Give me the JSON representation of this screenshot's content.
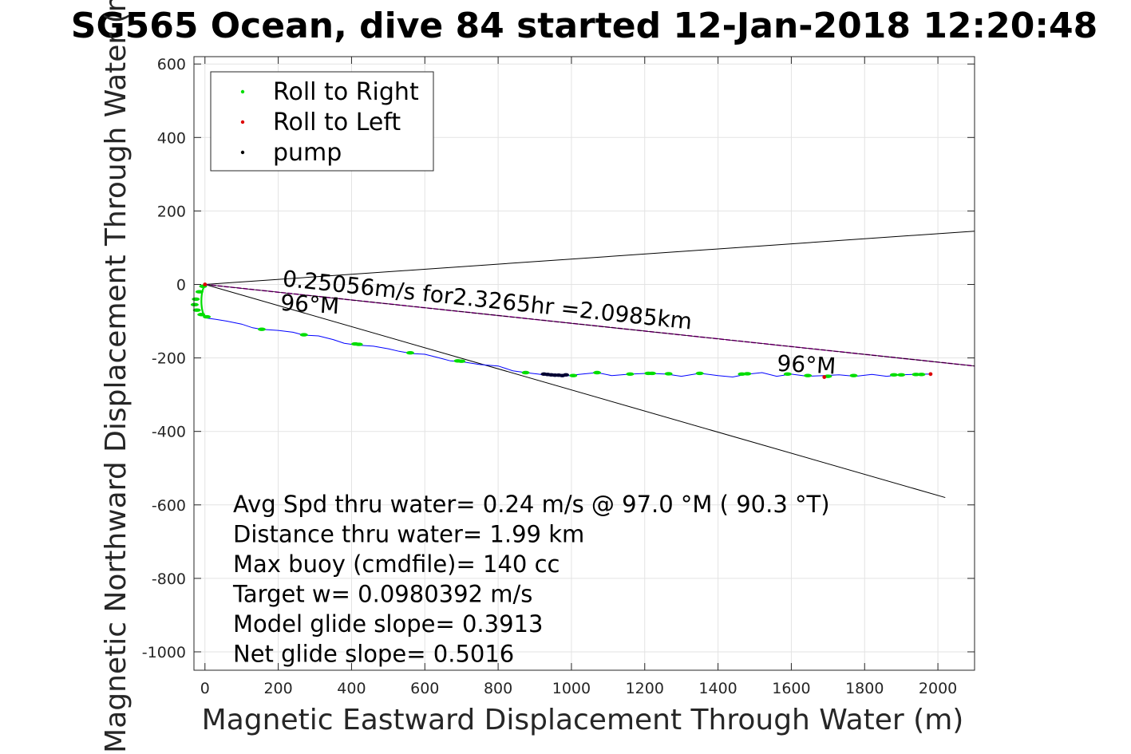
{
  "chart_data": {
    "type": "line",
    "title": "SG565 Ocean, dive 84 started 12-Jan-2018 12:20:48",
    "xlabel": "Magnetic Eastward Displacement Through Water (m)",
    "ylabel": "Magnetic Northward Displacement Through Water (m)",
    "xlim": [
      -30,
      2100
    ],
    "ylim": [
      -1050,
      620
    ],
    "xticks": [
      0,
      200,
      400,
      600,
      800,
      1000,
      1200,
      1400,
      1600,
      1800,
      2000
    ],
    "yticks": [
      600,
      400,
      200,
      0,
      -200,
      -400,
      -600,
      -800,
      -1000
    ],
    "grid": true,
    "legend": {
      "placement": "top-left",
      "entries": [
        {
          "label": "Roll to Right",
          "color": "#00dd00"
        },
        {
          "label": "Roll to Left",
          "color": "#dd0000"
        },
        {
          "label": "pump",
          "color": "#000000"
        }
      ]
    },
    "colors": {
      "track": "#0000ff",
      "roll_right": "#00dd00",
      "roll_left": "#dd0000",
      "pump": "#000033",
      "heading_line": "#cc00cc",
      "reference_lines": "#000000"
    },
    "track": {
      "x": [
        0,
        8,
        30,
        60,
        100,
        130,
        155,
        200,
        240,
        270,
        310,
        350,
        380,
        415,
        460,
        500,
        530,
        565,
        600,
        640,
        670,
        700,
        750,
        800,
        840,
        875,
        910,
        940,
        980,
        1020,
        1070,
        1110,
        1160,
        1210,
        1260,
        1300,
        1350,
        1400,
        1440,
        1475,
        1520,
        1560,
        1600,
        1645,
        1690,
        1730,
        1775,
        1820,
        1860,
        1900,
        1950,
        1980
      ],
      "y": [
        -90,
        -92,
        -95,
        -100,
        -108,
        -118,
        -122,
        -125,
        -130,
        -138,
        -140,
        -150,
        -160,
        -165,
        -168,
        -175,
        -182,
        -188,
        -190,
        -200,
        -208,
        -210,
        -218,
        -222,
        -235,
        -240,
        -244,
        -248,
        -250,
        -245,
        -240,
        -248,
        -244,
        -242,
        -244,
        -250,
        -242,
        -248,
        -252,
        -245,
        -240,
        -250,
        -244,
        -250,
        -248,
        -246,
        -250,
        -245,
        -250,
        -246,
        -244,
        -244
      ]
    },
    "roll_right_points": [
      [
        -5,
        -5
      ],
      [
        -15,
        -20
      ],
      [
        -25,
        -40
      ],
      [
        -28,
        -55
      ],
      [
        -22,
        -70
      ],
      [
        -10,
        -82
      ],
      [
        5,
        -88
      ],
      [
        155,
        -122
      ],
      [
        270,
        -137
      ],
      [
        410,
        -162
      ],
      [
        420,
        -163
      ],
      [
        560,
        -186
      ],
      [
        690,
        -208
      ],
      [
        700,
        -209
      ],
      [
        875,
        -240
      ],
      [
        1005,
        -248
      ],
      [
        1070,
        -240
      ],
      [
        1160,
        -244
      ],
      [
        1210,
        -242
      ],
      [
        1220,
        -242
      ],
      [
        1265,
        -243
      ],
      [
        1350,
        -242
      ],
      [
        1465,
        -244
      ],
      [
        1480,
        -243
      ],
      [
        1590,
        -244
      ],
      [
        1645,
        -248
      ],
      [
        1700,
        -250
      ],
      [
        1770,
        -248
      ],
      [
        1880,
        -246
      ],
      [
        1900,
        -246
      ],
      [
        1940,
        -245
      ],
      [
        1955,
        -245
      ]
    ],
    "roll_left_points": [
      [
        0,
        0
      ],
      [
        1690,
        -252
      ],
      [
        1980,
        -244
      ]
    ],
    "pump_points": [
      [
        925,
        -244
      ],
      [
        935,
        -245
      ],
      [
        945,
        -246
      ],
      [
        955,
        -247
      ],
      [
        965,
        -247
      ],
      [
        975,
        -248
      ],
      [
        985,
        -246
      ]
    ],
    "heading_line": {
      "from": [
        0,
        0
      ],
      "to": [
        2100,
        -222
      ],
      "label": "0.25056m/s for2.3265hr =2.0985km"
    },
    "reference_lines": [
      {
        "from": [
          0,
          0
        ],
        "to": [
          2100,
          145
        ]
      },
      {
        "from": [
          0,
          0
        ],
        "to": [
          2020,
          -580
        ]
      }
    ],
    "arc": {
      "center": [
        0,
        -45
      ],
      "radius": 44
    },
    "heading_labels": [
      {
        "text": "96°M",
        "x": 205,
        "y": -70
      },
      {
        "text": "96°M",
        "x": 1560,
        "y": -235
      }
    ],
    "stats": [
      "Avg Spd thru water=  0.24 m/s @  97.0 °M ( 90.3 °T)",
      "Distance thru water=  1.99 km",
      "Max buoy (cmdfile)= 140 cc",
      "Target w= 0.0980392 m/s",
      "Model glide slope= 0.3913",
      "Net glide slope= 0.5016"
    ]
  }
}
